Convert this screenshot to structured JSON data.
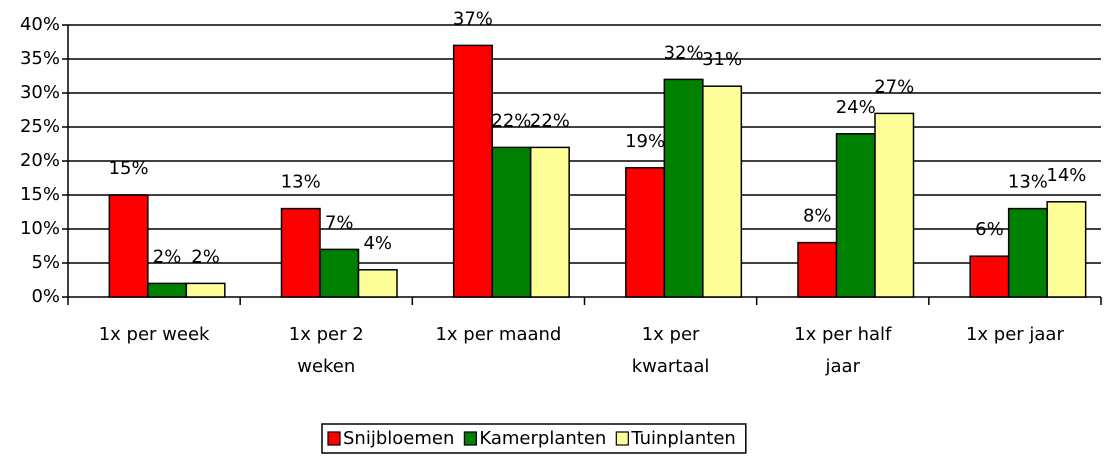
{
  "chart_data": {
    "type": "bar",
    "categories": [
      "1x per week",
      "1x per 2 weken",
      "1x per maand",
      "1x per kwartaal",
      "1x per half jaar",
      "1x per jaar"
    ],
    "series": [
      {
        "name": "Snijbloemen",
        "color": "#ff0000",
        "values": [
          15,
          13,
          37,
          19,
          8,
          6
        ],
        "value_labels": [
          "15%",
          "13%",
          "37%",
          "19%",
          "8%",
          "6%"
        ]
      },
      {
        "name": "Kamerplanten",
        "color": "#008000",
        "values": [
          2,
          7,
          22,
          32,
          24,
          13
        ],
        "value_labels": [
          "2%",
          "7%",
          "22%",
          "32%",
          "24%",
          "13%"
        ]
      },
      {
        "name": "Tuinplanten",
        "color": "#ffff99",
        "values": [
          2,
          4,
          22,
          31,
          27,
          14
        ],
        "value_labels": [
          "2%",
          "4%",
          "22%",
          "31%",
          "27%",
          "14%"
        ]
      }
    ],
    "ylim": [
      0,
      40
    ],
    "yticks": [
      {
        "value": 0,
        "label": "0%"
      },
      {
        "value": 5,
        "label": "5%"
      },
      {
        "value": 10,
        "label": "10%"
      },
      {
        "value": 15,
        "label": "15%"
      },
      {
        "value": 20,
        "label": "20%"
      },
      {
        "value": 25,
        "label": "25%"
      },
      {
        "value": 30,
        "label": "30%"
      },
      {
        "value": 35,
        "label": "35%"
      },
      {
        "value": 40,
        "label": "40%"
      }
    ],
    "grid": true,
    "legend": "bottom"
  }
}
